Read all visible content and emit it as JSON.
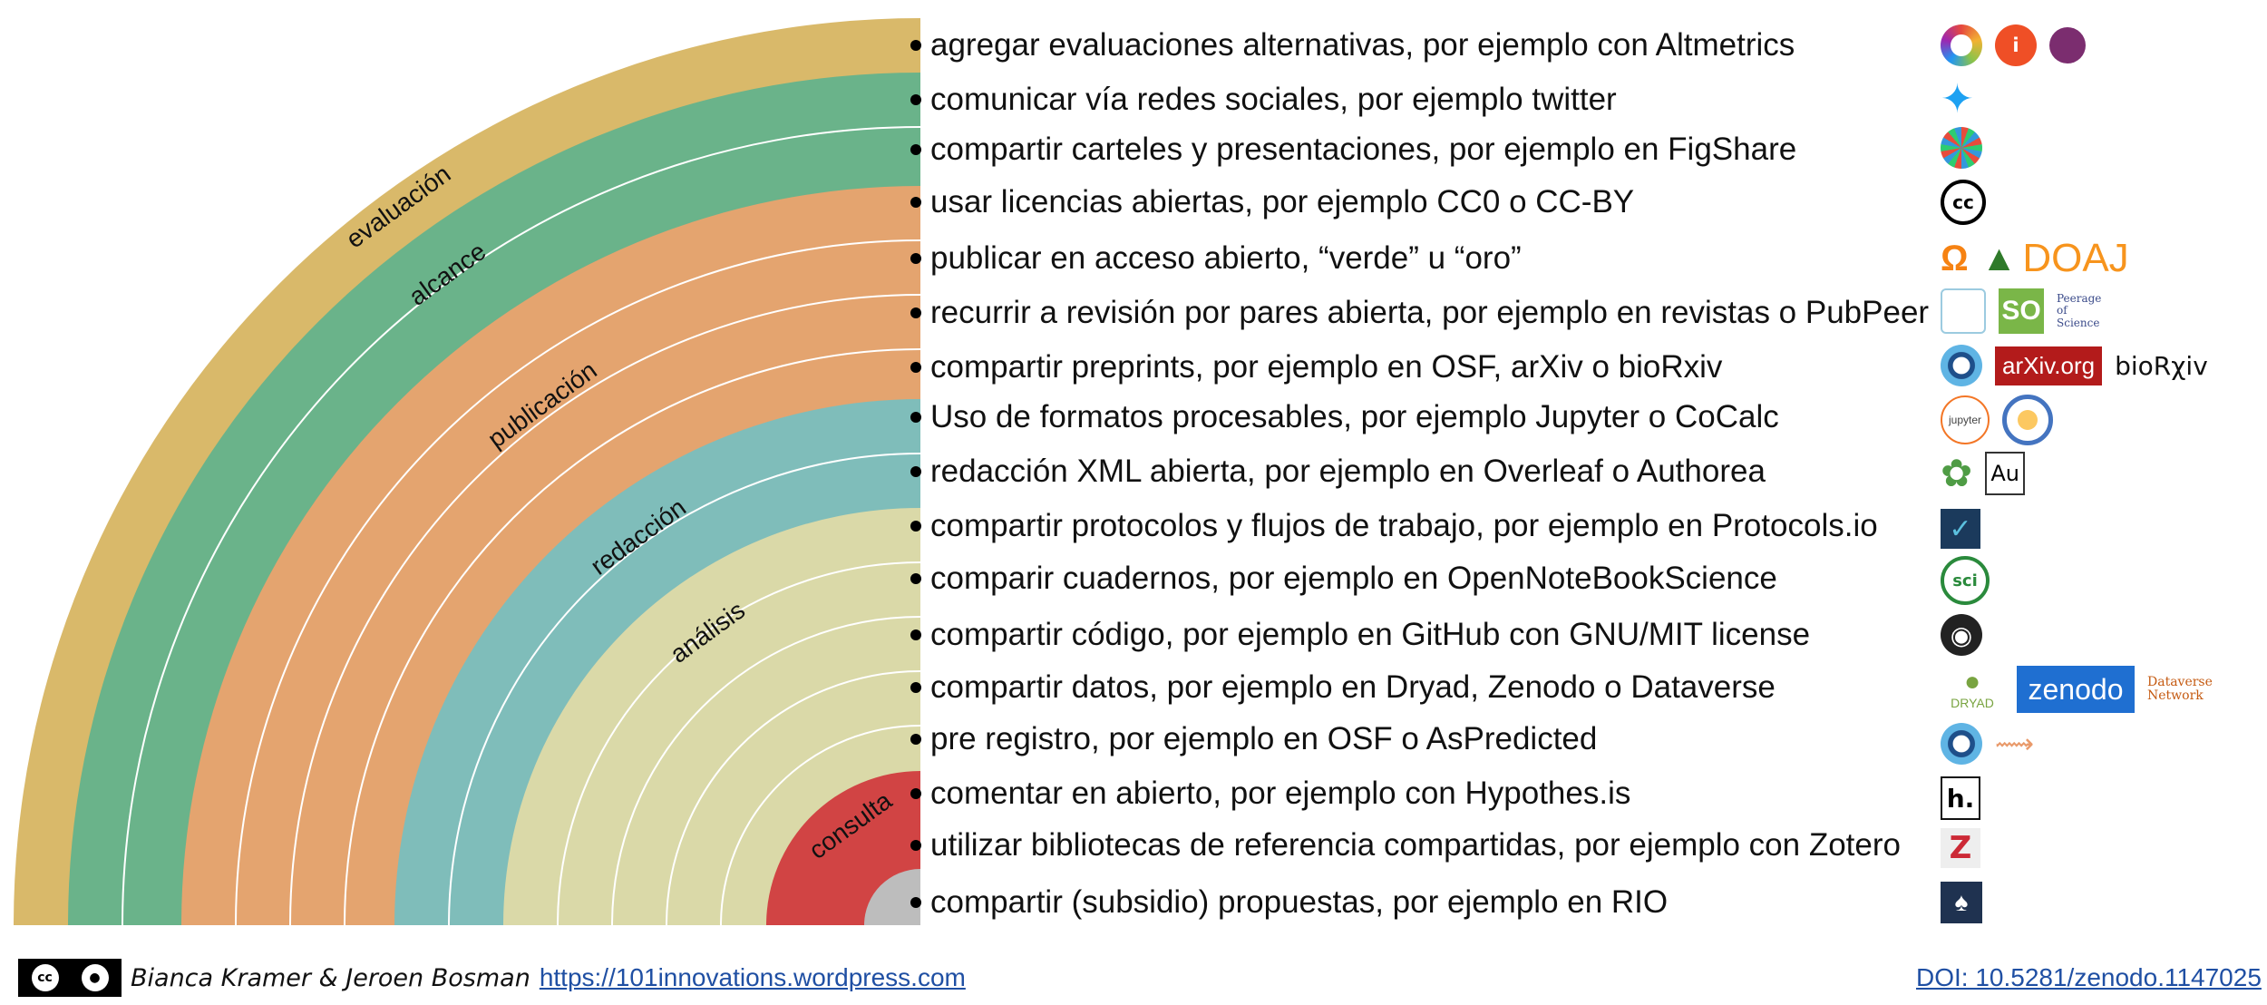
{
  "footer": {
    "authors": "Bianca Kramer & Jeroen Bosman",
    "url": "https://101innovations.wordpress.com",
    "doi": "DOI: 10.5281/zenodo.1147025",
    "license_icon": "cc-by-icon"
  },
  "bands": [
    {
      "label": "evaluación",
      "color": "#D9B96A"
    },
    {
      "label": "alcance",
      "color": "#6AB38A"
    },
    {
      "label": "publicación",
      "color": "#E4A46F"
    },
    {
      "label": "redacción",
      "color": "#7FBDBA"
    },
    {
      "label": "análisis",
      "color": "#DAD9A8"
    },
    {
      "label": "consulta",
      "color": "#D14444"
    }
  ],
  "items": [
    {
      "text": "agregar evaluaciones alternativas, por ejemplo con Altmetrics",
      "logos": [
        "altmetric-icon",
        "impactstory-icon",
        "plum-icon"
      ]
    },
    {
      "text": "comunicar vía redes sociales, por ejemplo twitter",
      "logos": [
        "twitter-icon"
      ]
    },
    {
      "text": "compartir carteles y presentaciones, por ejemplo en FigShare",
      "logos": [
        "figshare-icon"
      ]
    },
    {
      "text": "usar licencias abiertas, por ejemplo CC0 o CC-BY",
      "logos": [
        "creative-commons-icon"
      ]
    },
    {
      "text": "publicar en acceso abierto, “verde” u “oro”",
      "logos": [
        "open-access-icon",
        "doaj-icon"
      ]
    },
    {
      "text": "recurrir a revisión por pares abierta, por ejemplo en revistas o PubPeer",
      "logos": [
        "pubpeer-icon",
        "science-open-icon",
        "peerage-of-science-icon"
      ]
    },
    {
      "text": "compartir preprints, por ejemplo en OSF, arXiv o bioRxiv",
      "logos": [
        "osf-icon",
        "arxiv-icon",
        "biorxiv-icon"
      ]
    },
    {
      "text": "Uso de formatos procesables, por ejemplo Jupyter o CoCalc",
      "logos": [
        "jupyter-icon",
        "cocalc-icon"
      ]
    },
    {
      "text": "redacción XML abierta, por ejemplo en Overleaf o Authorea",
      "logos": [
        "overleaf-icon",
        "authorea-icon"
      ]
    },
    {
      "text": "compartir protocolos y flujos de trabajo, por ejemplo en Protocols.io",
      "logos": [
        "protocols-io-icon"
      ]
    },
    {
      "text": "comparir cuadernos, por ejemplo en OpenNoteBookScience",
      "logos": [
        "open-notebook-science-icon"
      ]
    },
    {
      "text": "compartir código, por ejemplo en GitHub con GNU/MIT license",
      "logos": [
        "github-icon"
      ]
    },
    {
      "text": "compartir datos, por ejemplo en Dryad, Zenodo o Dataverse",
      "logos": [
        "dryad-icon",
        "zenodo-icon",
        "dataverse-icon"
      ]
    },
    {
      "text": "pre registro, por ejemplo en OSF o AsPredicted",
      "logos": [
        "osf-icon",
        "aspredicted-icon"
      ]
    },
    {
      "text": "comentar en abierto, por ejemplo con Hypothes.is",
      "logos": [
        "hypothesis-icon"
      ]
    },
    {
      "text": "utilizar bibliotecas de referencia compartidas, por ejemplo con Zotero",
      "logos": [
        "zotero-icon"
      ]
    },
    {
      "text": "compartir (subsidio) propuestas, por ejemplo en RIO",
      "logos": [
        "rio-icon"
      ]
    }
  ],
  "logo_text": {
    "doaj": "DOAJ",
    "arxiv": "arXiv.org",
    "biorxiv": "bioRχiv",
    "zenodo": "zenodo",
    "dataverse": "Dataverse Network",
    "jupyter": "jupyter",
    "authorea": "Au",
    "sci": "sci",
    "science_open": "SO",
    "peerage": "Peerage of Science",
    "hypothesis": "h.",
    "zotero": "Z",
    "dryad": "DRYAD",
    "cc": "cc"
  },
  "colors": {
    "twitter": "#1DA1F2",
    "arxiv": "#B31B1B",
    "zenodo": "#1F6FD1",
    "doaj": "#F7941D",
    "open_access": "#F68212",
    "zotero": "#CC2936",
    "dryad": "#79A441"
  }
}
